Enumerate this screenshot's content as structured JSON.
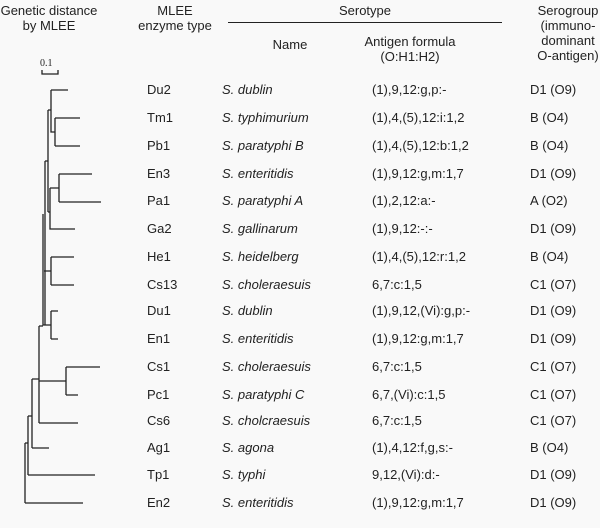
{
  "headers": {
    "distance": [
      "Genetic distance",
      "by MLEE"
    ],
    "enzyme_type": [
      "MLEE",
      "enzyme type"
    ],
    "serotype": "Serotype",
    "name": "Name",
    "antigen_formula": [
      "Antigen formula",
      "(O:H1:H2)"
    ],
    "serogroup": [
      "Serogroup",
      "(immuno-",
      "dominant",
      "O-antigen)"
    ]
  },
  "scale_bar_label": "0.1",
  "rows": [
    {
      "type": "Du2",
      "name": "S. dublin",
      "formula": "(1),9,12:g,p:-",
      "group": "D1 (O9)"
    },
    {
      "type": "Tm1",
      "name": "S. typhimurium",
      "formula": "(1),4,(5),12:i:1,2",
      "group": "B (O4)"
    },
    {
      "type": "Pb1",
      "name": "S. paratyphi B",
      "formula": "(1),4,(5),12:b:1,2",
      "group": "B (O4)"
    },
    {
      "type": "En3",
      "name": "S. enteritidis",
      "formula": "(1),9,12:g,m:1,7",
      "group": "D1 (O9)"
    },
    {
      "type": "Pa1",
      "name": "S. paratyphi A",
      "formula": "(1),2,12:a:-",
      "group": "A (O2)"
    },
    {
      "type": "Ga2",
      "name": "S. gallinarum",
      "formula": "(1),9,12:-:-",
      "group": "D1 (O9)"
    },
    {
      "type": "He1",
      "name": "S. heidelberg",
      "formula": "(1),4,(5),12:r:1,2",
      "group": "B (O4)"
    },
    {
      "type": "Cs13",
      "name": "S. choleraesuis",
      "formula": "6,7:c:1,5",
      "group": "C1 (O7)"
    },
    {
      "type": "Du1",
      "name": "S. dublin",
      "formula": "(1),9,12,(Vi):g,p:-",
      "group": "D1 (O9)"
    },
    {
      "type": "En1",
      "name": "S. enteritidis",
      "formula": "(1),9,12:g,m:1,7",
      "group": "D1 (O9)"
    },
    {
      "type": "Cs1",
      "name": "S. choleraesuis",
      "formula": "6,7:c:1,5",
      "group": "C1 (O7)"
    },
    {
      "type": "Pc1",
      "name": "S. paratyphi C",
      "formula": "6,7,(Vi):c:1,5",
      "group": "C1 (O7)"
    },
    {
      "type": "Cs6",
      "name": "S. cholcraesuis",
      "formula": "6,7:c:1,5",
      "group": "C1 (O7)"
    },
    {
      "type": "Ag1",
      "name": "S. agona",
      "formula": "(1),4,12:f,g,s:-",
      "group": "B (O4)"
    },
    {
      "type": "Tp1",
      "name": "S. typhi",
      "formula": "9,12,(Vi):d:-",
      "group": "D1 (O9)"
    },
    {
      "type": "En2",
      "name": "S. enteritidis",
      "formula": "(1),9,12:g,m:1,7",
      "group": "D1 (O9)"
    }
  ]
}
